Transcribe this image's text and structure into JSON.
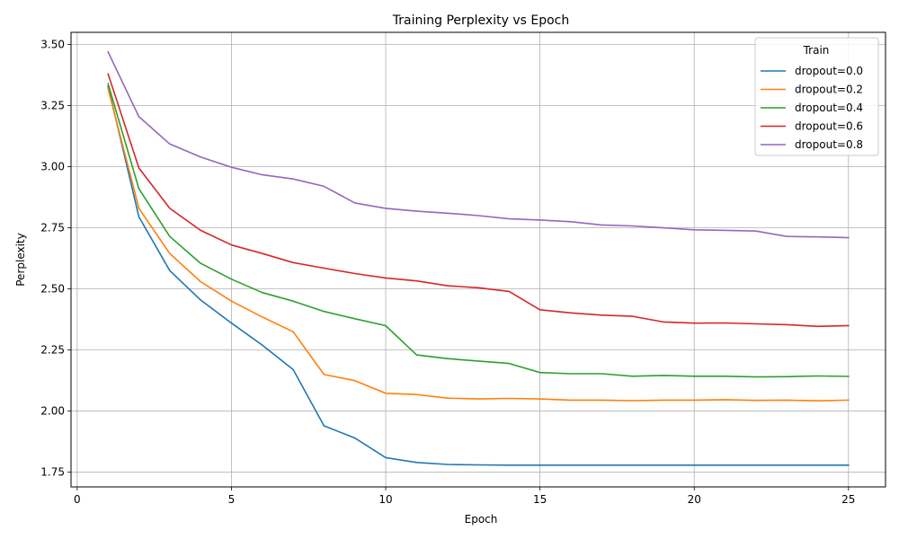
{
  "chart_data": {
    "type": "line",
    "title": "Training Perplexity vs Epoch",
    "xlabel": "Epoch",
    "ylabel": "Perplexity",
    "xlim": [
      -0.2,
      26.2
    ],
    "ylim": [
      1.69,
      3.55
    ],
    "xticks": [
      0,
      5,
      10,
      15,
      20,
      25
    ],
    "yticks": [
      1.75,
      2.0,
      2.25,
      2.5,
      2.75,
      3.0,
      3.25,
      3.5
    ],
    "ytick_labels": [
      "1.75",
      "2.00",
      "2.25",
      "2.50",
      "2.75",
      "3.00",
      "3.25",
      "3.50"
    ],
    "grid": true,
    "legend": {
      "title": "Train",
      "placement": "top-right"
    },
    "x": [
      1,
      2,
      3,
      4,
      5,
      6,
      7,
      8,
      9,
      10,
      11,
      12,
      13,
      14,
      15,
      16,
      17,
      18,
      19,
      20,
      21,
      22,
      23,
      24,
      25
    ],
    "series": [
      {
        "name": "dropout=0.0",
        "color": "#1f77b4",
        "values": [
          3.33,
          2.795,
          2.575,
          2.455,
          2.36,
          2.27,
          2.17,
          1.94,
          1.89,
          1.81,
          1.79,
          1.782,
          1.78,
          1.779,
          1.779,
          1.779,
          1.779,
          1.779,
          1.779,
          1.779,
          1.779,
          1.779,
          1.779,
          1.779,
          1.779
        ]
      },
      {
        "name": "dropout=0.2",
        "color": "#ff7f0e",
        "values": [
          3.32,
          2.83,
          2.645,
          2.53,
          2.45,
          2.385,
          2.325,
          2.15,
          2.125,
          2.073,
          2.068,
          2.053,
          2.05,
          2.052,
          2.05,
          2.045,
          2.045,
          2.043,
          2.045,
          2.045,
          2.047,
          2.044,
          2.045,
          2.042,
          2.045
        ]
      },
      {
        "name": "dropout=0.4",
        "color": "#2ca02c",
        "values": [
          3.34,
          2.91,
          2.715,
          2.605,
          2.54,
          2.485,
          2.45,
          2.408,
          2.378,
          2.35,
          2.23,
          2.215,
          2.205,
          2.195,
          2.158,
          2.153,
          2.153,
          2.143,
          2.146,
          2.143,
          2.143,
          2.14,
          2.141,
          2.144,
          2.142
        ]
      },
      {
        "name": "dropout=0.6",
        "color": "#d62728",
        "values": [
          3.38,
          2.995,
          2.83,
          2.74,
          2.68,
          2.645,
          2.608,
          2.585,
          2.563,
          2.545,
          2.533,
          2.513,
          2.505,
          2.49,
          2.415,
          2.402,
          2.393,
          2.388,
          2.365,
          2.36,
          2.361,
          2.357,
          2.354,
          2.347,
          2.35
        ]
      },
      {
        "name": "dropout=0.8",
        "color": "#9467bd",
        "values": [
          3.47,
          3.205,
          3.093,
          3.04,
          2.998,
          2.967,
          2.95,
          2.92,
          2.852,
          2.83,
          2.818,
          2.81,
          2.8,
          2.787,
          2.782,
          2.775,
          2.762,
          2.758,
          2.75,
          2.742,
          2.74,
          2.737,
          2.715,
          2.713,
          2.71
        ]
      }
    ]
  }
}
